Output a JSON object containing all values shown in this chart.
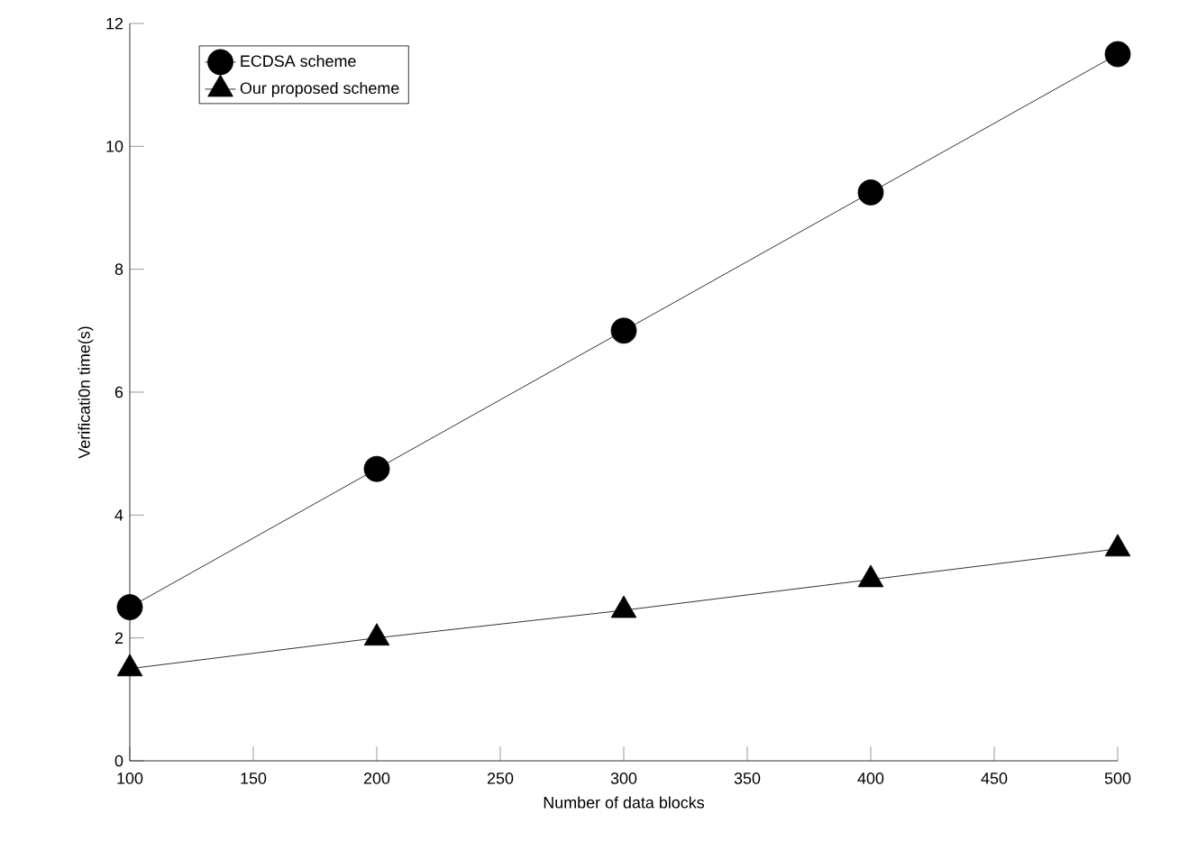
{
  "chart_data": {
    "type": "line",
    "xlabel": "Number  of data blocks",
    "ylabel": "Verificati0n time(s)",
    "x": [
      100,
      200,
      300,
      400,
      500
    ],
    "series": [
      {
        "name": "ECDSA scheme",
        "color": "#000000",
        "marker": "circle",
        "values": [
          2.5,
          4.75,
          7.0,
          9.25,
          11.5
        ]
      },
      {
        "name": "Our proposed scheme",
        "color": "#000000",
        "marker": "triangle",
        "values": [
          1.5,
          2.0,
          2.45,
          2.95,
          3.45
        ]
      }
    ],
    "xlim": [
      100,
      500
    ],
    "xticks": [
      100,
      150,
      200,
      250,
      300,
      350,
      400,
      450,
      500
    ],
    "ylim": [
      0,
      12
    ],
    "yticks": [
      0,
      2,
      4,
      6,
      8,
      10,
      12
    ],
    "grid": false,
    "legend": "top left",
    "line_style": "solid"
  }
}
